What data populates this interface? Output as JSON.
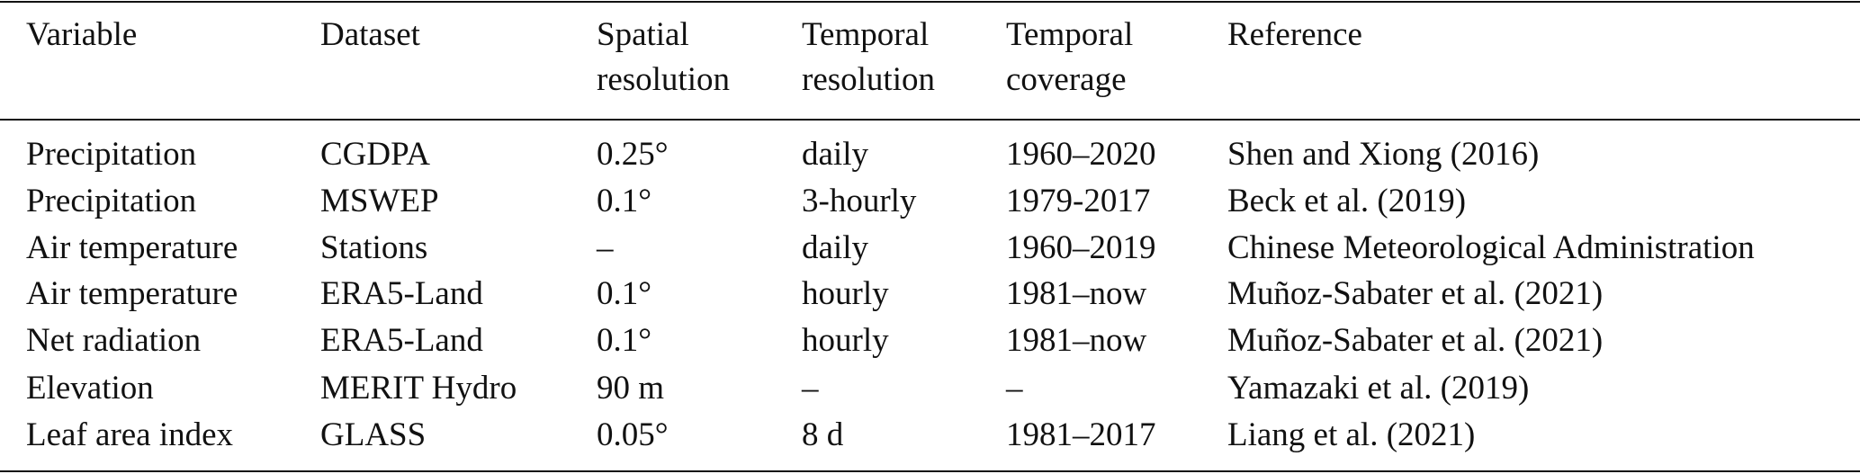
{
  "table": {
    "header": [
      [
        "Variable"
      ],
      [
        "Dataset"
      ],
      [
        "Spatial",
        "resolution"
      ],
      [
        "Temporal",
        "resolution"
      ],
      [
        "Temporal",
        "coverage"
      ],
      [
        "Reference"
      ]
    ],
    "rows": [
      [
        "Precipitation",
        "CGDPA",
        "0.25°",
        "daily",
        "1960–2020",
        "Shen and Xiong (2016)"
      ],
      [
        "Precipitation",
        "MSWEP",
        "0.1°",
        "3-hourly",
        "1979-2017",
        "Beck et al. (2019)"
      ],
      [
        "Air temperature",
        "Stations",
        "–",
        "daily",
        "1960–2019",
        "Chinese Meteorological Administration"
      ],
      [
        "Air temperature",
        "ERA5-Land",
        "0.1°",
        "hourly",
        "1981–now",
        "Muñoz-Sabater et al. (2021)"
      ],
      [
        "Net radiation",
        "ERA5-Land",
        "0.1°",
        "hourly",
        "1981–now",
        "Muñoz-Sabater et al. (2021)"
      ],
      [
        "Elevation",
        "MERIT Hydro",
        "90 m",
        "–",
        "–",
        "Yamazaki et al. (2019)"
      ],
      [
        "Leaf area index",
        "GLASS",
        "0.05°",
        "8 d",
        "1981–2017",
        "Liang et al. (2021)"
      ]
    ]
  }
}
